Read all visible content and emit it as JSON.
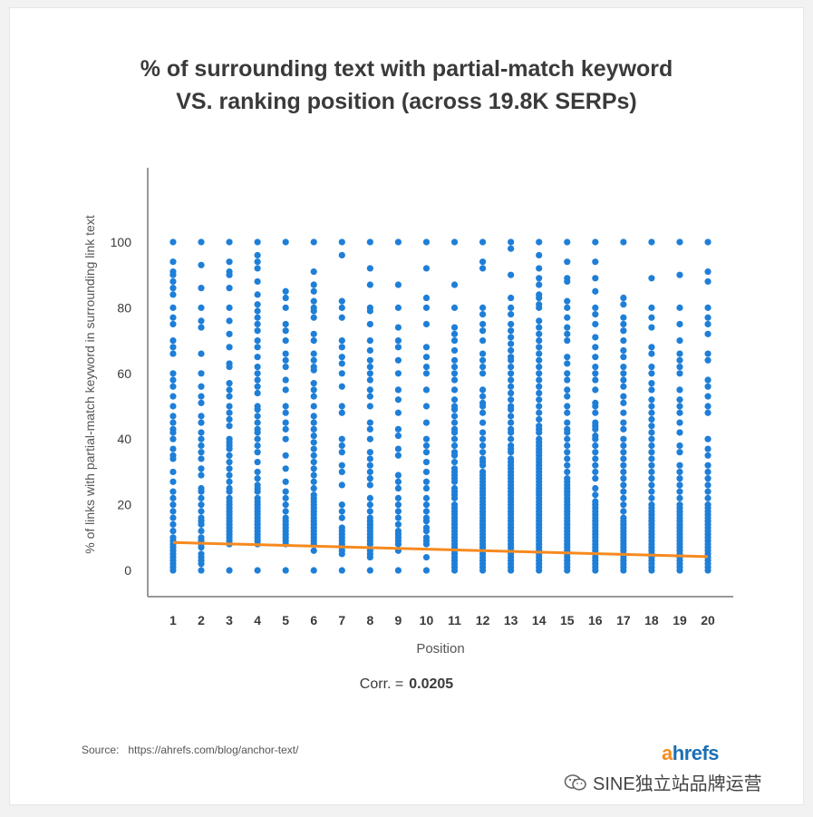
{
  "title_lines": [
    "% of surrounding text with partial-match keyword",
    "VS. ranking position (across 19.8K SERPs)"
  ],
  "corr": {
    "label": "Corr. =",
    "value": "0.0205"
  },
  "source": {
    "label": "Source:",
    "url": "https://ahrefs.com/blog/anchor-text/"
  },
  "logo": {
    "a": "a",
    "rest": "hrefs"
  },
  "watermark": {
    "text": "SINE独立站品牌运营",
    "icon": "wechat-icon"
  },
  "colors": {
    "points": "#1e7fd8",
    "trend": "#f68a1f",
    "axis": "#999999",
    "text": "#3a3a3a"
  },
  "chart_data": {
    "type": "scatter",
    "title": "% of surrounding text with partial-match keyword VS. ranking position (across 19.8K SERPs)",
    "xlabel": "Position",
    "ylabel": "% of links with partial-match keyword in surrounding link text",
    "x_ticks": [
      1,
      2,
      3,
      4,
      5,
      6,
      7,
      8,
      9,
      10,
      11,
      12,
      13,
      14,
      15,
      16,
      17,
      18,
      19,
      20
    ],
    "y_ticks": [
      0,
      20,
      40,
      60,
      80,
      100
    ],
    "xlim": [
      0.1,
      20.9
    ],
    "ylim": [
      -8,
      108
    ],
    "series": [
      {
        "x": 1,
        "y": [
          100,
          94,
          91,
          90,
          88,
          86,
          84,
          80,
          77,
          75,
          70,
          68,
          66,
          60,
          58,
          56,
          53,
          50,
          47,
          45,
          43,
          42,
          40,
          37,
          35,
          34,
          30,
          27,
          24,
          22,
          20,
          18,
          16,
          14,
          12,
          10,
          9,
          8,
          7,
          6,
          5,
          4,
          3,
          2,
          1,
          0
        ]
      },
      {
        "x": 2,
        "y": [
          100,
          93,
          86,
          80,
          76,
          74,
          66,
          60,
          56,
          53,
          51,
          47,
          45,
          42,
          40,
          38,
          36,
          34,
          31,
          29,
          25,
          24,
          22,
          20,
          18,
          16,
          15,
          14,
          12,
          10,
          9,
          8,
          7,
          5,
          4,
          3,
          2,
          0
        ]
      },
      {
        "x": 3,
        "y": [
          100,
          94,
          91,
          90,
          86,
          80,
          76,
          72,
          68,
          63,
          62,
          57,
          55,
          53,
          50,
          48,
          46,
          44,
          40,
          39,
          38,
          37,
          35,
          33,
          31,
          29,
          27,
          25,
          24,
          22,
          21,
          20,
          19,
          18,
          17,
          16,
          15,
          14,
          13,
          12,
          11,
          10,
          9,
          8,
          0
        ]
      },
      {
        "x": 4,
        "y": [
          100,
          96,
          94,
          92,
          88,
          84,
          81,
          79,
          77,
          75,
          73,
          70,
          68,
          65,
          62,
          60,
          58,
          56,
          54,
          50,
          49,
          47,
          45,
          43,
          42,
          40,
          38,
          36,
          33,
          30,
          28,
          26,
          25,
          24,
          22,
          21,
          20,
          19,
          18,
          17,
          16,
          15,
          14,
          13,
          12,
          11,
          10,
          9,
          8,
          0
        ]
      },
      {
        "x": 5,
        "y": [
          100,
          85,
          83,
          80,
          75,
          73,
          70,
          66,
          64,
          62,
          58,
          55,
          50,
          48,
          45,
          43,
          40,
          35,
          31,
          27,
          24,
          22,
          20,
          18,
          16,
          15,
          14,
          13,
          12,
          11,
          10,
          9,
          8,
          0
        ]
      },
      {
        "x": 6,
        "y": [
          100,
          91,
          87,
          85,
          82,
          80,
          79,
          77,
          72,
          70,
          66,
          64,
          62,
          61,
          57,
          55,
          53,
          50,
          47,
          45,
          43,
          41,
          39,
          37,
          35,
          33,
          31,
          29,
          27,
          25,
          23,
          22,
          21,
          20,
          19,
          18,
          17,
          16,
          15,
          14,
          13,
          12,
          11,
          10,
          9,
          8,
          6,
          0
        ]
      },
      {
        "x": 7,
        "y": [
          100,
          96,
          82,
          80,
          77,
          70,
          68,
          65,
          63,
          60,
          56,
          50,
          48,
          40,
          38,
          36,
          32,
          30,
          26,
          20,
          18,
          16,
          13,
          12,
          11,
          10,
          9,
          8,
          7,
          6,
          5,
          0
        ]
      },
      {
        "x": 8,
        "y": [
          100,
          92,
          87,
          80,
          79,
          75,
          70,
          67,
          64,
          62,
          60,
          58,
          55,
          53,
          50,
          45,
          43,
          40,
          36,
          34,
          32,
          30,
          28,
          26,
          22,
          20,
          18,
          16,
          15,
          14,
          13,
          12,
          11,
          10,
          9,
          8,
          6,
          5,
          4,
          0
        ]
      },
      {
        "x": 9,
        "y": [
          100,
          87,
          80,
          74,
          70,
          68,
          64,
          60,
          55,
          52,
          48,
          43,
          41,
          37,
          35,
          29,
          27,
          25,
          22,
          20,
          18,
          16,
          14,
          12,
          11,
          10,
          9,
          8,
          6,
          0
        ]
      },
      {
        "x": 10,
        "y": [
          100,
          92,
          83,
          80,
          75,
          68,
          65,
          62,
          60,
          55,
          50,
          45,
          40,
          38,
          36,
          33,
          30,
          27,
          25,
          22,
          20,
          18,
          16,
          15,
          13,
          12,
          10,
          9,
          8,
          4,
          0
        ]
      },
      {
        "x": 11,
        "y": [
          100,
          87,
          80,
          74,
          72,
          70,
          67,
          64,
          62,
          60,
          58,
          55,
          52,
          50,
          49,
          47,
          45,
          43,
          42,
          40,
          38,
          36,
          35,
          33,
          31,
          30,
          29,
          28,
          27,
          25,
          24,
          23,
          22,
          20,
          19,
          18,
          17,
          16,
          15,
          14,
          13,
          12,
          11,
          10,
          9,
          8,
          7,
          6,
          5,
          4,
          3,
          2,
          1,
          0
        ]
      },
      {
        "x": 12,
        "y": [
          100,
          94,
          92,
          80,
          78,
          75,
          73,
          70,
          66,
          64,
          62,
          60,
          55,
          53,
          51,
          50,
          48,
          45,
          42,
          40,
          38,
          36,
          34,
          33,
          32,
          30,
          29,
          28,
          27,
          26,
          25,
          24,
          23,
          22,
          21,
          20,
          19,
          18,
          17,
          16,
          15,
          14,
          13,
          12,
          11,
          10,
          9,
          8,
          7,
          6,
          5,
          4,
          3,
          2,
          1,
          0
        ]
      },
      {
        "x": 13,
        "y": [
          100,
          98,
          90,
          83,
          80,
          78,
          75,
          73,
          71,
          69,
          67,
          65,
          64,
          62,
          60,
          58,
          56,
          54,
          52,
          50,
          49,
          47,
          45,
          43,
          42,
          40,
          38,
          37,
          36,
          34,
          33,
          32,
          31,
          30,
          29,
          28,
          27,
          26,
          25,
          24,
          23,
          22,
          21,
          20,
          19,
          18,
          17,
          16,
          15,
          14,
          13,
          12,
          11,
          10,
          9,
          8,
          7,
          6,
          5,
          4,
          3,
          2,
          1,
          0
        ]
      },
      {
        "x": 14,
        "y": [
          100,
          96,
          92,
          89,
          87,
          84,
          83,
          81,
          80,
          76,
          74,
          72,
          70,
          68,
          66,
          64,
          62,
          60,
          58,
          56,
          54,
          52,
          50,
          48,
          46,
          44,
          43,
          42,
          40,
          39,
          38,
          37,
          36,
          35,
          34,
          33,
          32,
          31,
          30,
          29,
          28,
          27,
          26,
          25,
          24,
          23,
          22,
          21,
          20,
          19,
          18,
          17,
          16,
          15,
          14,
          13,
          12,
          11,
          10,
          9,
          8,
          7,
          6,
          5,
          4,
          3,
          2,
          1,
          0
        ]
      },
      {
        "x": 15,
        "y": [
          100,
          94,
          89,
          88,
          82,
          80,
          77,
          74,
          72,
          70,
          65,
          63,
          60,
          58,
          55,
          53,
          50,
          48,
          45,
          43,
          42,
          40,
          38,
          36,
          34,
          32,
          30,
          28,
          27,
          26,
          25,
          24,
          23,
          22,
          21,
          20,
          19,
          18,
          17,
          16,
          15,
          14,
          13,
          12,
          11,
          10,
          9,
          8,
          7,
          6,
          5,
          4,
          3,
          2,
          1,
          0
        ]
      },
      {
        "x": 16,
        "y": [
          100,
          94,
          89,
          85,
          80,
          78,
          75,
          71,
          68,
          65,
          62,
          60,
          58,
          55,
          51,
          50,
          48,
          45,
          44,
          43,
          41,
          40,
          38,
          36,
          34,
          32,
          30,
          28,
          25,
          23,
          21,
          20,
          19,
          18,
          17,
          16,
          15,
          14,
          13,
          12,
          11,
          10,
          9,
          8,
          7,
          6,
          5,
          4,
          3,
          2,
          1,
          0
        ]
      },
      {
        "x": 17,
        "y": [
          100,
          83,
          81,
          77,
          75,
          73,
          70,
          67,
          65,
          62,
          60,
          58,
          56,
          53,
          51,
          48,
          45,
          43,
          40,
          38,
          36,
          34,
          32,
          30,
          28,
          26,
          24,
          22,
          20,
          18,
          16,
          15,
          14,
          13,
          12,
          11,
          10,
          9,
          8,
          7,
          6,
          5,
          4,
          3,
          2,
          1,
          0
        ]
      },
      {
        "x": 18,
        "y": [
          100,
          89,
          80,
          77,
          74,
          68,
          66,
          62,
          60,
          57,
          55,
          52,
          50,
          48,
          46,
          44,
          42,
          40,
          38,
          36,
          34,
          32,
          30,
          28,
          26,
          24,
          22,
          20,
          19,
          18,
          17,
          16,
          15,
          14,
          13,
          12,
          11,
          10,
          9,
          8,
          7,
          6,
          5,
          4,
          3,
          2,
          1,
          0
        ]
      },
      {
        "x": 19,
        "y": [
          100,
          90,
          80,
          75,
          70,
          66,
          64,
          62,
          60,
          55,
          52,
          50,
          48,
          45,
          42,
          38,
          36,
          32,
          30,
          28,
          26,
          24,
          22,
          20,
          19,
          18,
          17,
          16,
          15,
          14,
          13,
          12,
          11,
          10,
          9,
          8,
          7,
          6,
          5,
          4,
          3,
          2,
          1,
          0
        ]
      },
      {
        "x": 20,
        "y": [
          100,
          91,
          88,
          80,
          77,
          75,
          72,
          66,
          64,
          58,
          56,
          53,
          50,
          48,
          40,
          37,
          35,
          32,
          30,
          28,
          26,
          24,
          22,
          20,
          19,
          18,
          17,
          16,
          15,
          14,
          13,
          12,
          11,
          10,
          9,
          8,
          7,
          6,
          5,
          4,
          3,
          2,
          1,
          0
        ]
      }
    ],
    "trendline": {
      "x": [
        1,
        20
      ],
      "y": [
        8.5,
        4.2
      ]
    },
    "grid": false,
    "legend": "none"
  }
}
